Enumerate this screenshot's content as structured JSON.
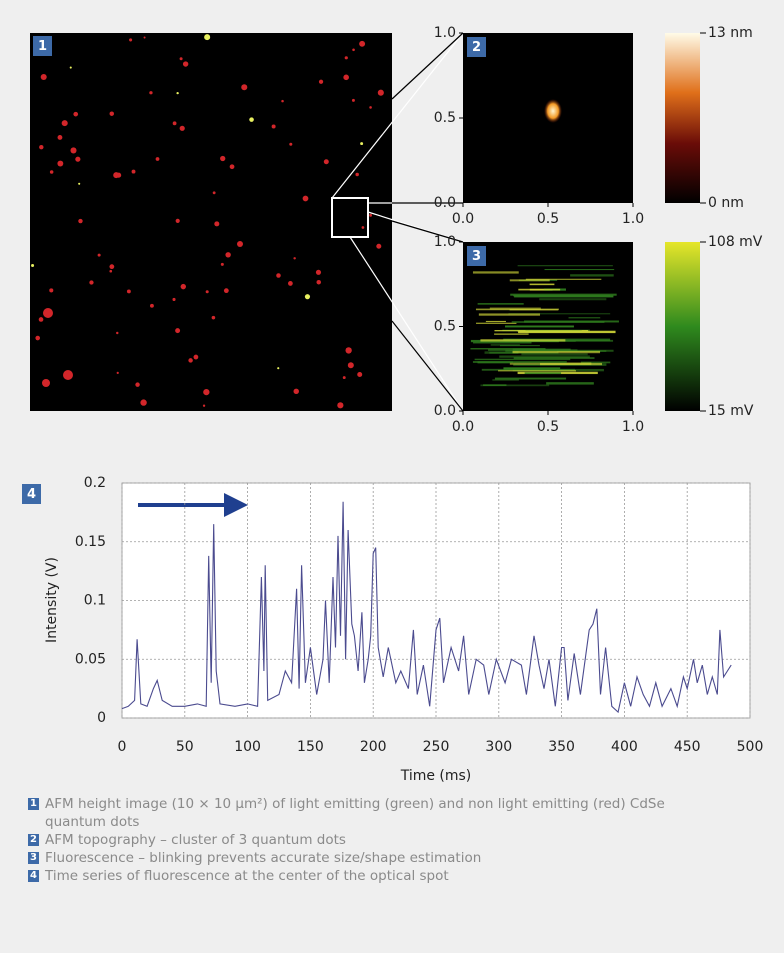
{
  "chart_data": [
    {
      "type": "image",
      "label": "1"
    },
    {
      "type": "image",
      "label": "2",
      "xlim": [
        0,
        1
      ],
      "ylim": [
        0,
        1
      ],
      "xticks": [
        {
          "value": 0,
          "label": "0.0"
        },
        {
          "value": 0.5,
          "label": "0.5"
        },
        {
          "value": 1,
          "label": "1.0"
        }
      ],
      "yticks": [
        {
          "value": 0,
          "label": "0.0"
        },
        {
          "value": 0.5,
          "label": "0.5"
        },
        {
          "value": 1,
          "label": "1.0"
        }
      ],
      "clim": [
        0,
        13
      ],
      "cticks": [
        {
          "value": 0,
          "label": "0 nm"
        },
        {
          "value": 13,
          "label": "13 nm"
        }
      ]
    },
    {
      "type": "image",
      "label": "3",
      "xlim": [
        0,
        1
      ],
      "ylim": [
        0,
        1
      ],
      "xticks": [
        {
          "value": 0,
          "label": "0.0"
        },
        {
          "value": 0.5,
          "label": "0.5"
        },
        {
          "value": 1,
          "label": "1.0"
        }
      ],
      "yticks": [
        {
          "value": 0,
          "label": "0.0"
        },
        {
          "value": 0.5,
          "label": "0.5"
        },
        {
          "value": 1,
          "label": "1.0"
        }
      ],
      "clim": [
        15,
        108
      ],
      "cticks": [
        {
          "value": 15,
          "label": "15 mV"
        },
        {
          "value": 108,
          "label": "108 mV"
        }
      ]
    },
    {
      "type": "line",
      "label": "4",
      "xlabel": "Time (ms)",
      "ylabel": "Intensity (V)",
      "xlim": [
        0,
        500
      ],
      "xticks": [
        0,
        50,
        100,
        150,
        200,
        250,
        300,
        350,
        400,
        450,
        500
      ],
      "ylim": [
        0,
        0.2
      ],
      "yticks": [
        0,
        0.05,
        0.1,
        0.15,
        0.2
      ],
      "grid": true,
      "x": [
        0,
        5,
        10,
        12,
        15,
        20,
        25,
        28,
        32,
        40,
        50,
        60,
        67,
        69,
        71,
        73,
        75,
        78,
        90,
        100,
        108,
        111,
        113,
        114,
        116,
        125,
        130,
        135,
        139,
        141,
        143,
        146,
        150,
        155,
        160,
        162,
        165,
        168,
        170,
        172,
        174,
        176,
        178,
        180,
        183,
        185,
        188,
        191,
        193,
        196,
        198,
        200,
        202,
        204,
        208,
        212,
        218,
        222,
        228,
        232,
        235,
        240,
        245,
        250,
        253,
        256,
        262,
        268,
        272,
        276,
        282,
        288,
        292,
        298,
        305,
        310,
        318,
        322,
        328,
        332,
        336,
        340,
        345,
        350,
        352,
        355,
        360,
        365,
        372,
        375,
        378,
        381,
        385,
        390,
        395,
        400,
        405,
        410,
        415,
        420,
        425,
        430,
        437,
        442,
        447,
        450,
        455,
        458,
        462,
        466,
        470,
        474,
        476,
        479,
        482,
        485
      ],
      "series": [
        {
          "color": "#4b4b8f",
          "values": [
            0.008,
            0.01,
            0.015,
            0.067,
            0.012,
            0.01,
            0.025,
            0.032,
            0.015,
            0.01,
            0.01,
            0.012,
            0.01,
            0.138,
            0.03,
            0.165,
            0.04,
            0.012,
            0.01,
            0.012,
            0.01,
            0.12,
            0.04,
            0.13,
            0.015,
            0.02,
            0.04,
            0.03,
            0.11,
            0.025,
            0.13,
            0.03,
            0.06,
            0.02,
            0.05,
            0.1,
            0.03,
            0.12,
            0.06,
            0.155,
            0.07,
            0.184,
            0.05,
            0.16,
            0.08,
            0.07,
            0.04,
            0.09,
            0.03,
            0.05,
            0.07,
            0.14,
            0.145,
            0.06,
            0.035,
            0.06,
            0.03,
            0.04,
            0.025,
            0.075,
            0.02,
            0.045,
            0.01,
            0.075,
            0.085,
            0.03,
            0.06,
            0.04,
            0.07,
            0.02,
            0.05,
            0.045,
            0.02,
            0.05,
            0.03,
            0.05,
            0.045,
            0.02,
            0.07,
            0.045,
            0.025,
            0.05,
            0.01,
            0.06,
            0.06,
            0.015,
            0.055,
            0.02,
            0.075,
            0.08,
            0.093,
            0.02,
            0.06,
            0.01,
            0.005,
            0.03,
            0.01,
            0.035,
            0.02,
            0.01,
            0.03,
            0.01,
            0.025,
            0.01,
            0.035,
            0.025,
            0.05,
            0.03,
            0.045,
            0.02,
            0.035,
            0.02,
            0.075,
            0.035,
            0.04,
            0.045
          ]
        }
      ]
    }
  ],
  "caption": [
    {
      "label": "1",
      "text": "AFM height image (10 × 10 µm²) of light emitting (green) and non light emitting (red) CdSe quantum dots"
    },
    {
      "label": "2",
      "text": "AFM topography – cluster of 3 quantum dots"
    },
    {
      "label": "3",
      "text": "Fluorescence – blinking prevents accurate size/shape estimation"
    },
    {
      "label": "4",
      "text": "Time series of fluorescence at the center of the optical spot"
    }
  ]
}
